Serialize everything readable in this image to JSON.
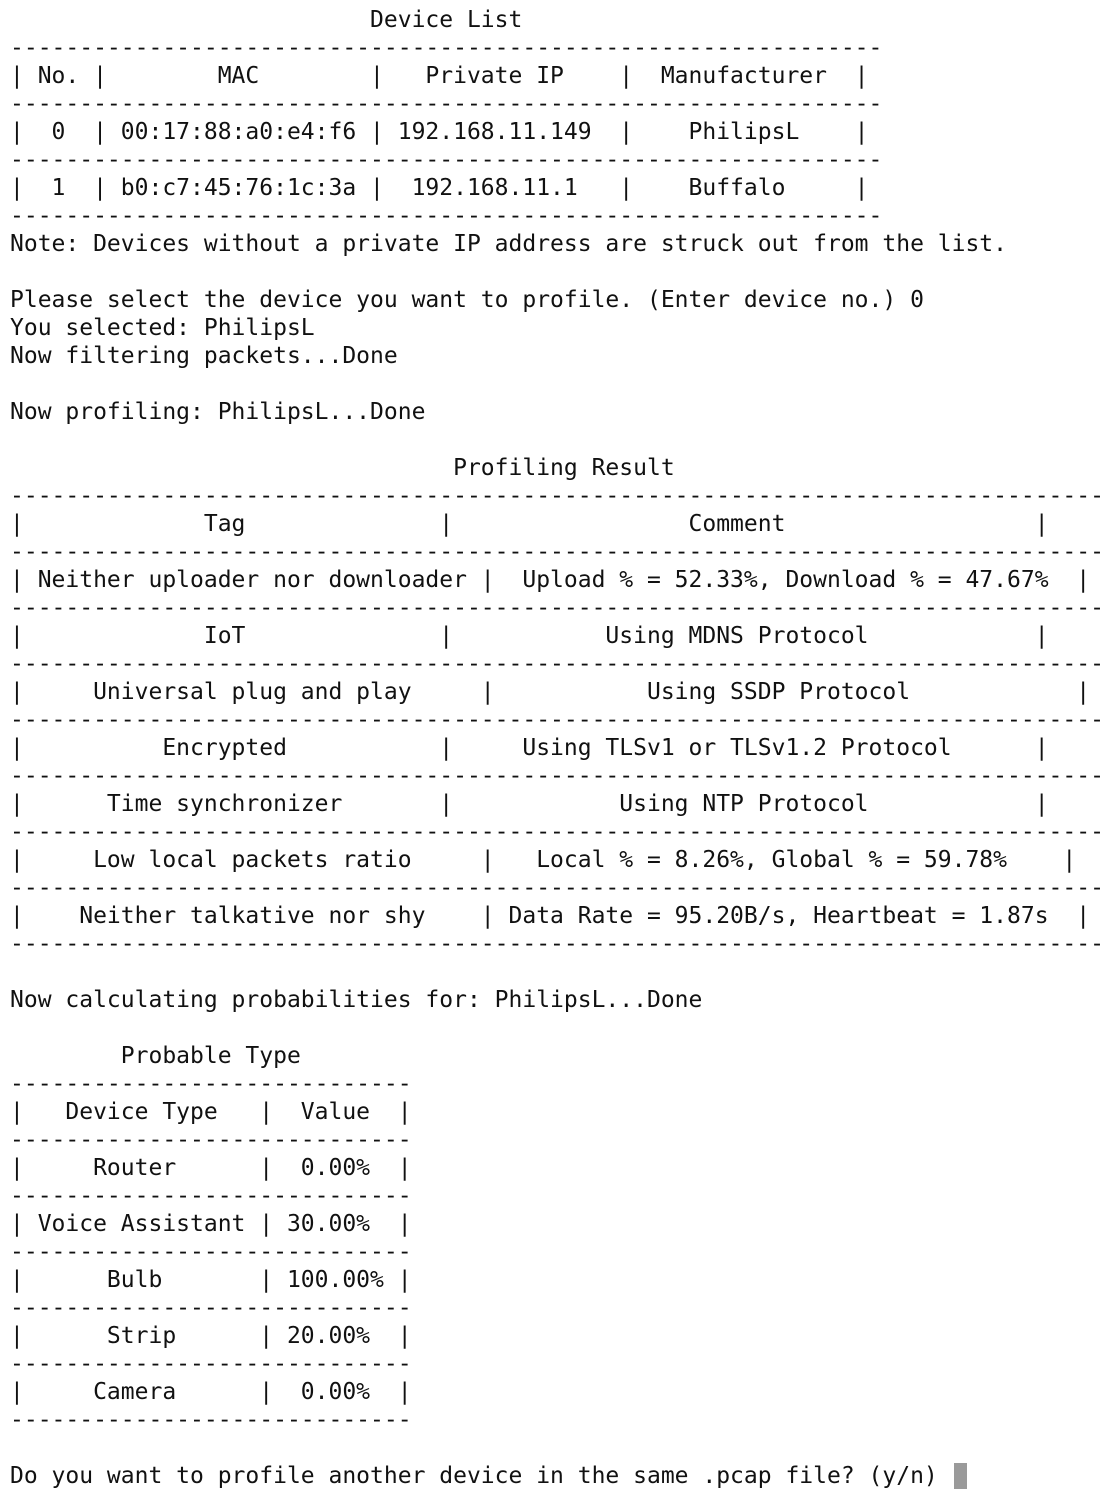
{
  "terminal": {
    "lines": [
      "                          Device List",
      "---------------------------------------------------------------",
      "| No. |        MAC        |   Private IP    |  Manufacturer  |",
      "---------------------------------------------------------------",
      "|  0  | 00:17:88:a0:e4:f6 | 192.168.11.149  |    PhilipsL    |",
      "---------------------------------------------------------------",
      "|  1  | b0:c7:45:76:1c:3a |  192.168.11.1   |    Buffalo     |",
      "---------------------------------------------------------------",
      "Note: Devices without a private IP address are struck out from the list.",
      "",
      "Please select the device you want to profile. (Enter device no.) 0",
      "You selected: PhilipsL",
      "Now filtering packets...Done",
      "",
      "Now profiling: PhilipsL...Done",
      "",
      "                                Profiling Result",
      "-------------------------------------------------------------------------------",
      "|             Tag              |                 Comment                  |",
      "-------------------------------------------------------------------------------",
      "| Neither uploader nor downloader |  Upload % = 52.33%, Download % = 47.67%  |",
      "-------------------------------------------------------------------------------",
      "|             IoT              |           Using MDNS Protocol            |",
      "-------------------------------------------------------------------------------",
      "|     Universal plug and play     |           Using SSDP Protocol            |",
      "-------------------------------------------------------------------------------",
      "|          Encrypted           |     Using TLSv1 or TLSv1.2 Protocol      |",
      "-------------------------------------------------------------------------------",
      "|      Time synchronizer       |            Using NTP Protocol            |",
      "-------------------------------------------------------------------------------",
      "|     Low local packets ratio     |   Local % = 8.26%, Global % = 59.78%    |",
      "-------------------------------------------------------------------------------",
      "|    Neither talkative nor shy    | Data Rate = 95.20B/s, Heartbeat = 1.87s  |",
      "-------------------------------------------------------------------------------",
      "",
      "Now calculating probabilities for: PhilipsL...Done",
      "",
      "        Probable Type",
      "-----------------------------",
      "|   Device Type   |  Value  |",
      "-----------------------------",
      "|     Router      |  0.00%  |",
      "-----------------------------",
      "| Voice Assistant | 30.00%  |",
      "-----------------------------",
      "|      Bulb       | 100.00% |",
      "-----------------------------",
      "|      Strip      | 20.00%  |",
      "-----------------------------",
      "|     Camera      |  0.00%  |",
      "-----------------------------",
      "",
      "Do you want to profile another device in the same .pcap file? (y/n) "
    ]
  }
}
